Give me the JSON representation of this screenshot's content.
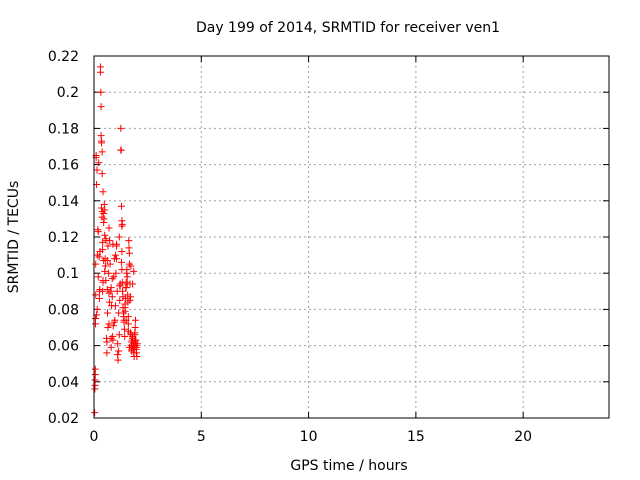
{
  "chart_data": {
    "type": "scatter",
    "title": "Day 199 of 2014, SRMTID for receiver ven1",
    "xlabel": "GPS time / hours",
    "ylabel": "SRMTID / TECUs",
    "xlim": [
      0,
      24
    ],
    "ylim": [
      0.02,
      0.22
    ],
    "xticks": [
      0,
      5,
      10,
      15,
      20
    ],
    "yticks": [
      0.02,
      0.04,
      0.06,
      0.08,
      0.1,
      0.12,
      0.14,
      0.16,
      0.18,
      0.2,
      0.22
    ],
    "grid": true,
    "marker": "+",
    "color": "#ff0000",
    "series": [
      {
        "x": [
          0.03,
          0.04,
          0.05,
          0.05,
          0.06,
          0.06,
          0.07,
          0.07,
          0.08,
          0.08,
          0.1,
          0.1,
          0.12,
          0.12,
          0.14,
          0.15,
          0.16,
          0.18,
          0.2,
          0.2,
          0.22,
          0.24,
          0.25,
          0.26,
          0.27,
          0.28,
          0.3,
          0.3,
          0.32,
          0.33,
          0.33,
          0.35,
          0.35,
          0.37,
          0.38,
          0.38,
          0.4,
          0.4,
          0.42,
          0.42,
          0.45,
          0.45,
          0.47,
          0.48,
          0.5,
          0.5,
          0.52,
          0.53,
          0.55,
          0.56,
          0.58,
          0.6,
          0.6,
          0.62,
          0.63,
          0.65,
          0.65,
          0.68,
          0.7,
          0.7,
          0.72,
          0.73,
          0.75,
          0.78,
          0.8,
          0.8,
          0.82,
          0.85,
          0.87,
          0.88,
          0.9,
          0.92,
          0.95,
          0.97,
          1.0,
          1.0,
          1.02,
          1.05,
          1.05,
          1.08,
          1.1,
          1.1,
          1.12,
          1.15,
          1.15,
          1.18,
          1.2,
          1.2,
          1.22,
          1.25,
          1.25,
          1.27,
          1.28,
          1.3,
          1.3,
          1.32,
          1.33,
          1.35,
          1.35,
          1.37,
          1.38,
          1.4,
          1.4,
          1.42,
          1.43,
          1.45,
          1.45,
          1.47,
          1.48,
          1.5,
          1.5,
          1.52,
          1.53,
          1.55,
          1.55,
          1.57,
          1.58,
          1.6,
          1.6,
          1.62,
          1.63,
          1.65,
          1.65,
          1.67,
          1.68,
          1.7,
          1.7,
          1.72,
          1.73,
          1.75,
          1.75,
          1.77,
          1.78,
          1.8,
          1.8,
          1.82,
          1.83,
          1.85,
          1.85,
          1.87,
          1.88,
          1.9,
          1.9,
          1.92,
          1.93,
          1.95,
          1.95,
          1.97,
          1.98,
          2.0,
          2.02,
          0.45,
          0.5,
          0.35,
          0.38,
          1.3,
          1.32,
          1.3,
          1.28,
          0.55,
          0.62,
          0.7,
          0.88,
          0.95,
          1.05,
          1.18,
          1.22,
          1.45,
          1.5,
          1.6,
          1.65,
          1.72,
          1.8,
          1.85,
          1.9,
          1.93,
          1.97,
          0.8,
          0.85,
          0.4,
          0.42
        ],
        "y": [
          0.023,
          0.036,
          0.038,
          0.041,
          0.044,
          0.047,
          0.072,
          0.075,
          0.105,
          0.088,
          0.164,
          0.165,
          0.149,
          0.077,
          0.157,
          0.08,
          0.11,
          0.124,
          0.123,
          0.098,
          0.161,
          0.109,
          0.086,
          0.09,
          0.091,
          0.112,
          0.214,
          0.211,
          0.2,
          0.192,
          0.176,
          0.173,
          0.172,
          0.131,
          0.167,
          0.155,
          0.117,
          0.113,
          0.096,
          0.145,
          0.133,
          0.128,
          0.13,
          0.138,
          0.135,
          0.121,
          0.108,
          0.104,
          0.096,
          0.118,
          0.064,
          0.062,
          0.056,
          0.091,
          0.078,
          0.115,
          0.07,
          0.1,
          0.072,
          0.089,
          0.084,
          0.118,
          0.105,
          0.09,
          0.064,
          0.059,
          0.082,
          0.097,
          0.065,
          0.063,
          0.071,
          0.098,
          0.073,
          0.074,
          0.082,
          0.11,
          0.1,
          0.116,
          0.108,
          0.09,
          0.061,
          0.055,
          0.052,
          0.078,
          0.057,
          0.066,
          0.093,
          0.085,
          0.094,
          0.18,
          0.168,
          0.168,
          0.137,
          0.126,
          0.102,
          0.095,
          0.09,
          0.087,
          0.081,
          0.078,
          0.076,
          0.073,
          0.074,
          0.069,
          0.065,
          0.079,
          0.083,
          0.086,
          0.092,
          0.092,
          0.095,
          0.1,
          0.102,
          0.094,
          0.098,
          0.088,
          0.084,
          0.076,
          0.072,
          0.118,
          0.114,
          0.111,
          0.105,
          0.085,
          0.094,
          0.087,
          0.067,
          0.066,
          0.06,
          0.062,
          0.057,
          0.058,
          0.063,
          0.065,
          0.064,
          0.06,
          0.059,
          0.061,
          0.056,
          0.054,
          0.058,
          0.062,
          0.066,
          0.07,
          0.074,
          0.063,
          0.06,
          0.059,
          0.056,
          0.054,
          0.061,
          0.107,
          0.101,
          0.136,
          0.134,
          0.129,
          0.127,
          0.112,
          0.106,
          0.119,
          0.107,
          0.125,
          0.116,
          0.108,
          0.115,
          0.12,
          0.093,
          0.081,
          0.074,
          0.068,
          0.059,
          0.104,
          0.094,
          0.101,
          0.067,
          0.063,
          0.058,
          0.092,
          0.087,
          0.09,
          0.095
        ],
        "name": ""
      }
    ]
  }
}
